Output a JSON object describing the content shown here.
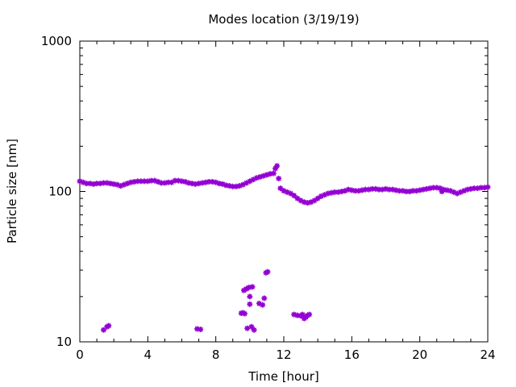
{
  "chart_data": {
    "type": "scatter",
    "title": "Modes location (3/19/19)",
    "xlabel": "Time [hour]",
    "ylabel": "Particle size [nm]",
    "xlim": [
      0,
      24
    ],
    "ylim": [
      10,
      1000
    ],
    "yscale": "log",
    "xticks": [
      0,
      4,
      8,
      12,
      16,
      20,
      24
    ],
    "xtick_labels": [
      "0",
      "4",
      "8",
      "12",
      "16",
      "20",
      "24"
    ],
    "yticks": [
      10,
      100,
      1000
    ],
    "ytick_labels": [
      "10",
      "100",
      "1000"
    ],
    "grid": false,
    "legend": "none",
    "marker_color": "#9400d3",
    "series": [
      {
        "points": [
          [
            0.0,
            117
          ],
          [
            0.2,
            115
          ],
          [
            0.4,
            113
          ],
          [
            0.6,
            113
          ],
          [
            0.8,
            112
          ],
          [
            1.0,
            113
          ],
          [
            1.2,
            113
          ],
          [
            1.4,
            114
          ],
          [
            1.6,
            114
          ],
          [
            1.8,
            113
          ],
          [
            2.0,
            112
          ],
          [
            2.2,
            111
          ],
          [
            2.4,
            109
          ],
          [
            2.6,
            111
          ],
          [
            2.8,
            113
          ],
          [
            3.0,
            115
          ],
          [
            3.2,
            116
          ],
          [
            3.4,
            117
          ],
          [
            3.6,
            117
          ],
          [
            3.8,
            117
          ],
          [
            4.0,
            117
          ],
          [
            4.2,
            118
          ],
          [
            4.4,
            118
          ],
          [
            4.6,
            116
          ],
          [
            4.8,
            114
          ],
          [
            5.0,
            114
          ],
          [
            5.2,
            115
          ],
          [
            5.4,
            115
          ],
          [
            5.6,
            118
          ],
          [
            5.8,
            118
          ],
          [
            6.0,
            117
          ],
          [
            6.2,
            116
          ],
          [
            6.4,
            114
          ],
          [
            6.6,
            113
          ],
          [
            6.8,
            112
          ],
          [
            7.0,
            113
          ],
          [
            7.2,
            114
          ],
          [
            7.4,
            115
          ],
          [
            7.6,
            116
          ],
          [
            7.8,
            116
          ],
          [
            8.0,
            115
          ],
          [
            8.2,
            113
          ],
          [
            8.4,
            112
          ],
          [
            8.6,
            110
          ],
          [
            8.8,
            109
          ],
          [
            9.0,
            108
          ],
          [
            9.2,
            108
          ],
          [
            9.4,
            109
          ],
          [
            9.6,
            111
          ],
          [
            9.8,
            114
          ],
          [
            10.0,
            117
          ],
          [
            10.2,
            120
          ],
          [
            10.4,
            123
          ],
          [
            10.6,
            125
          ],
          [
            10.8,
            127
          ],
          [
            11.0,
            129
          ],
          [
            11.2,
            131
          ],
          [
            11.4,
            132
          ],
          [
            11.5,
            142
          ],
          [
            11.6,
            148
          ],
          [
            11.7,
            122
          ],
          [
            11.8,
            105
          ],
          [
            12.0,
            101
          ],
          [
            12.2,
            99
          ],
          [
            12.4,
            97
          ],
          [
            12.6,
            94
          ],
          [
            12.8,
            90
          ],
          [
            13.0,
            87
          ],
          [
            13.2,
            85
          ],
          [
            13.4,
            84
          ],
          [
            13.6,
            85
          ],
          [
            13.8,
            87
          ],
          [
            14.0,
            90
          ],
          [
            14.2,
            93
          ],
          [
            14.4,
            95
          ],
          [
            14.6,
            97
          ],
          [
            14.8,
            98
          ],
          [
            15.0,
            99
          ],
          [
            15.2,
            99
          ],
          [
            15.4,
            100
          ],
          [
            15.6,
            101
          ],
          [
            15.8,
            103
          ],
          [
            16.0,
            102
          ],
          [
            16.2,
            101
          ],
          [
            16.4,
            101
          ],
          [
            16.6,
            102
          ],
          [
            16.8,
            103
          ],
          [
            17.0,
            103
          ],
          [
            17.2,
            104
          ],
          [
            17.4,
            104
          ],
          [
            17.6,
            103
          ],
          [
            17.8,
            103
          ],
          [
            18.0,
            104
          ],
          [
            18.2,
            103
          ],
          [
            18.4,
            103
          ],
          [
            18.6,
            102
          ],
          [
            18.8,
            101
          ],
          [
            19.0,
            101
          ],
          [
            19.2,
            100
          ],
          [
            19.4,
            100
          ],
          [
            19.6,
            101
          ],
          [
            19.8,
            101
          ],
          [
            20.0,
            102
          ],
          [
            20.2,
            103
          ],
          [
            20.4,
            104
          ],
          [
            20.6,
            105
          ],
          [
            20.8,
            106
          ],
          [
            21.0,
            106
          ],
          [
            21.2,
            105
          ],
          [
            21.3,
            100
          ],
          [
            21.4,
            103
          ],
          [
            21.6,
            102
          ],
          [
            21.8,
            101
          ],
          [
            22.0,
            99
          ],
          [
            22.2,
            97
          ],
          [
            22.4,
            99
          ],
          [
            22.6,
            101
          ],
          [
            22.8,
            103
          ],
          [
            23.0,
            104
          ],
          [
            23.2,
            105
          ],
          [
            23.4,
            105
          ],
          [
            23.6,
            106
          ],
          [
            23.8,
            106
          ],
          [
            24.0,
            107
          ],
          [
            1.4,
            12.0
          ],
          [
            1.6,
            12.6
          ],
          [
            1.7,
            12.8
          ],
          [
            6.9,
            12.2
          ],
          [
            7.1,
            12.1
          ],
          [
            9.5,
            15.5
          ],
          [
            9.6,
            15.6
          ],
          [
            9.7,
            15.4
          ],
          [
            9.65,
            22.0
          ],
          [
            9.8,
            22.5
          ],
          [
            9.85,
            12.3
          ],
          [
            9.95,
            23.0
          ],
          [
            10.0,
            20.0
          ],
          [
            10.0,
            17.8
          ],
          [
            10.1,
            12.6
          ],
          [
            10.15,
            23.2
          ],
          [
            10.25,
            12.0
          ],
          [
            10.55,
            18.0
          ],
          [
            10.75,
            17.6
          ],
          [
            10.85,
            19.5
          ],
          [
            10.95,
            28.8
          ],
          [
            11.05,
            29.2
          ],
          [
            12.6,
            15.2
          ],
          [
            12.8,
            15.0
          ],
          [
            13.0,
            14.9
          ],
          [
            13.1,
            15.2
          ],
          [
            13.2,
            14.3
          ],
          [
            13.3,
            14.6
          ],
          [
            13.4,
            15.0
          ],
          [
            13.5,
            15.2
          ]
        ]
      }
    ]
  }
}
